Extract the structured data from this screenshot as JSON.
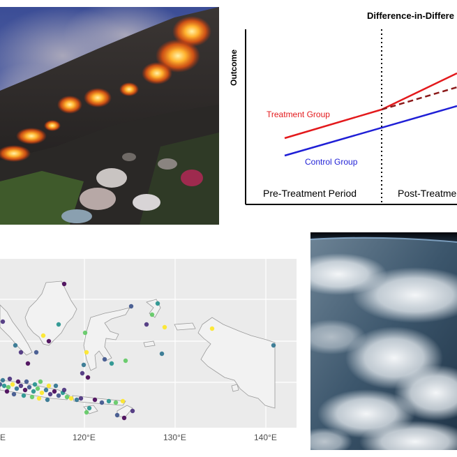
{
  "did_chart": {
    "title": "Difference-in-Differe",
    "y_label": "Outcome",
    "treatment_label": "Treatment Group",
    "control_label": "Control Group",
    "pre_period_label": "Pre-Treatment Period",
    "post_period_label": "Post-Treatme",
    "treatment_color": "#e3191c",
    "control_color": "#1f1fd6",
    "counterfactual_color": "#8b1a1a"
  },
  "map": {
    "x_tick_labels": [
      "E",
      "120°E",
      "130°E",
      "140°E"
    ],
    "panel_background": "#ebebeb",
    "land_fill": "#f2f2f2",
    "coast_stroke": "#9a9a9a"
  }
}
